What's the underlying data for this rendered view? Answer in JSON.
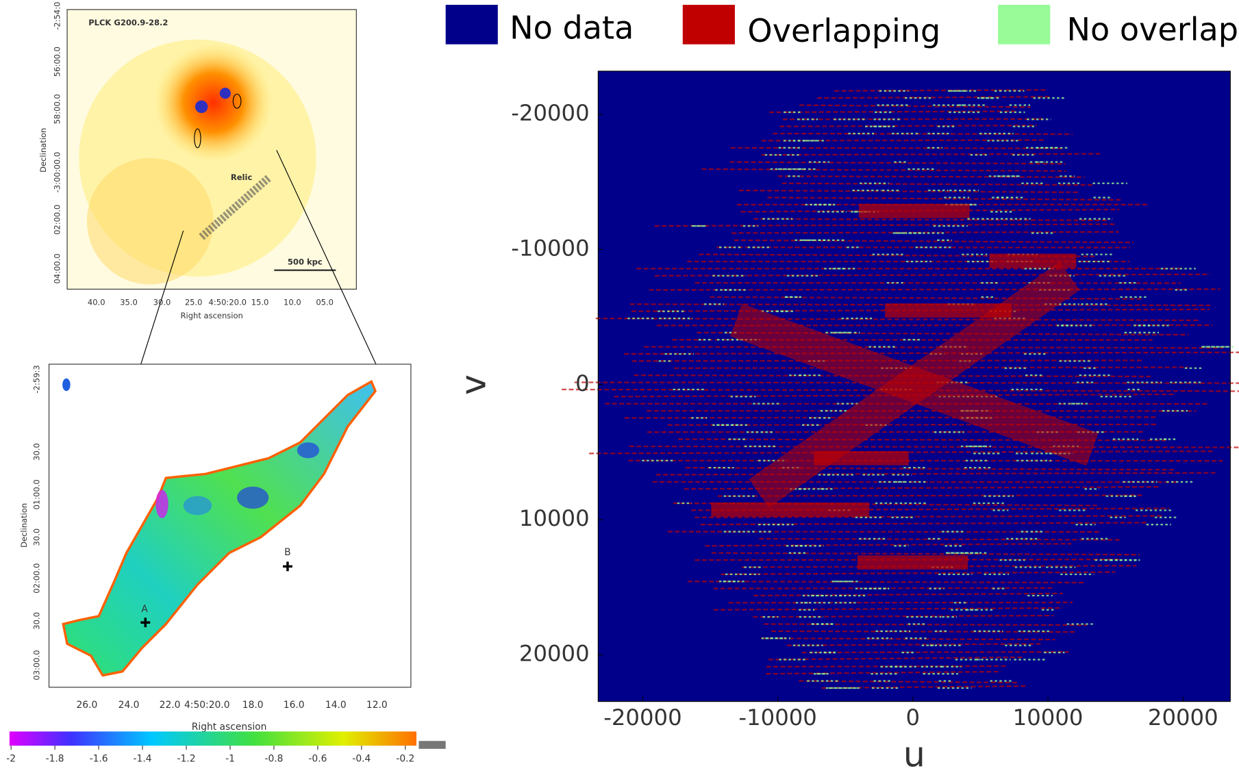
{
  "legend": [
    {
      "label": "No data",
      "color": "#00008b"
    },
    {
      "label": "Overlapping",
      "color": "#c00000"
    },
    {
      "label": "No overlap",
      "color": "#98fb98"
    }
  ],
  "uv_plot": {
    "xlabel": "u",
    "ylabel": "v",
    "xlim": [
      -23300,
      23500
    ],
    "ylim": [
      -23200,
      23450
    ],
    "xticks": [
      -20000,
      -10000,
      0,
      10000,
      20000
    ],
    "yticks": [
      -20000,
      -10000,
      0,
      10000,
      20000
    ],
    "background": "#00008b"
  },
  "xray_map": {
    "title": "PLCK G200.9-28.2",
    "annotation": "Relic",
    "scale_bar": "500 kpc",
    "xlabel": "Right ascension",
    "ylabel": "Declination",
    "xticks": [
      "40.0",
      "35.0",
      "30.0",
      "25.0",
      "4:50:20.0",
      "15.0",
      "10.0",
      "05.0"
    ],
    "yticks": [
      "-2:54:0",
      "56:00.0",
      "58:00.0",
      "-3:00:00.0",
      "02:00.0",
      "04:00.0"
    ]
  },
  "spectral_map": {
    "xlabel": "Right ascension",
    "ylabel": "Declination",
    "xticks": [
      "26.0",
      "24.0",
      "22.0",
      "4:50:20.0",
      "18.0",
      "16.0",
      "14.0",
      "12.0"
    ],
    "yticks": [
      "-2:59:3",
      "30.0",
      "01:00.0",
      "30.0",
      "02:00.0",
      "30.0",
      "03:00.0"
    ],
    "markers": [
      "A",
      "B"
    ]
  },
  "colorbar": {
    "ticks": [
      -2,
      -1.8,
      -1.6,
      -1.4,
      -1.2,
      -1,
      -0.8,
      -0.6,
      -0.4,
      -0.2
    ]
  }
}
